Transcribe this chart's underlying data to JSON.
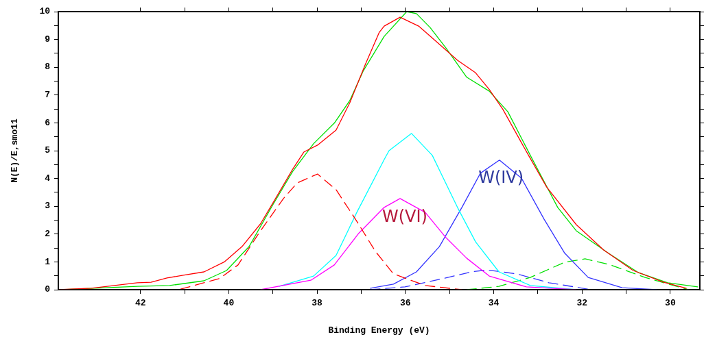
{
  "chart_data": {
    "type": "line",
    "xlabel": "Binding Energy (eV)",
    "ylabel": "N(E)/E,smo11",
    "xlim": [
      43.86,
      29.33
    ],
    "ylim": [
      0,
      10
    ],
    "xticks": [
      42,
      {
        "value": 41,
        "label": null
      },
      40,
      {
        "value": 39,
        "label": null
      },
      38,
      {
        "value": 37,
        "label": null
      },
      36,
      {
        "value": 35,
        "label": null
      },
      34,
      {
        "value": 33,
        "label": null
      },
      32,
      {
        "value": 31,
        "label": null
      },
      30
    ],
    "yticks": [
      0,
      {
        "value": 0.5,
        "label": null
      },
      1,
      {
        "value": 1.5,
        "label": null
      },
      2,
      {
        "value": 2.5,
        "label": null
      },
      3,
      {
        "value": 3.5,
        "label": null
      },
      4,
      {
        "value": 4.5,
        "label": null
      },
      5,
      {
        "value": 5.5,
        "label": null
      },
      6,
      {
        "value": 6.5,
        "label": null
      },
      7,
      {
        "value": 7.5,
        "label": null
      },
      8,
      {
        "value": 8.5,
        "label": null
      },
      9,
      {
        "value": 9.5,
        "label": null
      },
      10
    ],
    "grid": false,
    "legend": false,
    "marker": "none",
    "annotations": [
      "W(VI)",
      "W(IV)"
    ],
    "series": [
      {
        "color": "#ff0000",
        "line_style": "solid",
        "x": [
          43.86,
          43.11,
          42.07,
          41.76,
          41.4,
          41.03,
          40.56,
          40.1,
          39.7,
          39.28,
          38.97,
          38.55,
          38.3,
          37.99,
          37.57,
          37.26,
          36.9,
          36.59,
          36.48,
          36.12,
          35.7,
          35.28,
          34.82,
          34.41,
          34.1,
          33.79,
          33.21,
          32.8,
          32.13,
          31.51,
          30.84,
          30.15,
          29.64
        ],
        "values": [
          0.0,
          0.05,
          0.25,
          0.27,
          0.42,
          0.52,
          0.64,
          1.0,
          1.55,
          2.37,
          3.2,
          4.34,
          4.95,
          5.2,
          5.74,
          6.72,
          8.13,
          9.26,
          9.48,
          9.8,
          9.48,
          8.9,
          8.25,
          7.8,
          7.2,
          6.48,
          4.83,
          3.69,
          2.34,
          1.43,
          0.69,
          0.27,
          0.05
        ]
      },
      {
        "color": "#00e000",
        "line_style": "solid",
        "x": [
          43.78,
          42.07,
          41.34,
          40.56,
          40.05,
          39.54,
          39.01,
          38.55,
          38.08,
          37.61,
          37.26,
          36.95,
          36.48,
          35.97,
          35.75,
          35.44,
          35.08,
          34.61,
          34.1,
          33.68,
          33.17,
          32.55,
          32.13,
          31.4,
          30.73,
          30.06,
          29.38
        ],
        "values": [
          0.0,
          0.12,
          0.15,
          0.32,
          0.69,
          1.55,
          3.03,
          4.26,
          5.25,
          5.99,
          6.8,
          7.88,
          9.11,
          10.0,
          9.93,
          9.43,
          8.69,
          7.64,
          7.14,
          6.4,
          4.83,
          2.96,
          2.12,
          1.31,
          0.62,
          0.25,
          0.1
        ]
      },
      {
        "color": "#ff0000",
        "line_style": "dashed",
        "x": [
          41.09,
          40.21,
          39.79,
          39.28,
          38.76,
          38.45,
          37.99,
          37.57,
          37.1,
          36.68,
          36.27,
          35.55,
          34.72
        ],
        "values": [
          0.02,
          0.4,
          0.89,
          2.12,
          3.28,
          3.84,
          4.16,
          3.6,
          2.46,
          1.38,
          0.57,
          0.15,
          0
        ]
      },
      {
        "color": "#ff00ff",
        "line_style": "solid",
        "x": [
          39.28,
          38.14,
          37.61,
          37.05,
          36.48,
          36.12,
          35.55,
          35.08,
          34.61,
          34.1,
          33.26,
          32.13
        ],
        "values": [
          0,
          0.34,
          0.89,
          2.04,
          2.96,
          3.28,
          2.78,
          1.87,
          1.13,
          0.49,
          0.1,
          0
        ]
      },
      {
        "color": "#00ffff",
        "line_style": "solid",
        "x": [
          38.86,
          38.08,
          37.57,
          37.1,
          36.48,
          36.37,
          35.86,
          35.39,
          34.82,
          34.41,
          33.88,
          33.17,
          32.13
        ],
        "values": [
          0.12,
          0.49,
          1.23,
          2.78,
          4.68,
          5.0,
          5.62,
          4.83,
          2.96,
          1.72,
          0.64,
          0.15,
          0
        ]
      },
      {
        "color": "#3333ff",
        "line_style": "solid",
        "x": [
          36.79,
          36.27,
          35.75,
          35.23,
          34.72,
          34.3,
          33.87,
          33.37,
          32.86,
          32.39,
          31.86,
          31.09,
          30.31
        ],
        "values": [
          0.05,
          0.2,
          0.64,
          1.55,
          2.96,
          4.19,
          4.66,
          4.01,
          2.54,
          1.31,
          0.44,
          0.07,
          0
        ]
      },
      {
        "color": "#3333ff",
        "line_style": "dashed",
        "x": [
          36.79,
          36.01,
          35.23,
          34.51,
          34.15,
          33.48,
          32.75,
          31.86
        ],
        "values": [
          0,
          0.1,
          0.37,
          0.64,
          0.71,
          0.57,
          0.25,
          0.02
        ]
      },
      {
        "color": "#00e000",
        "line_style": "dashed",
        "x": [
          34.61,
          33.88,
          33.17,
          32.39,
          31.93,
          31.35,
          30.57,
          29.59
        ],
        "values": [
          0,
          0.12,
          0.44,
          0.99,
          1.11,
          0.89,
          0.44,
          0
        ]
      }
    ]
  }
}
